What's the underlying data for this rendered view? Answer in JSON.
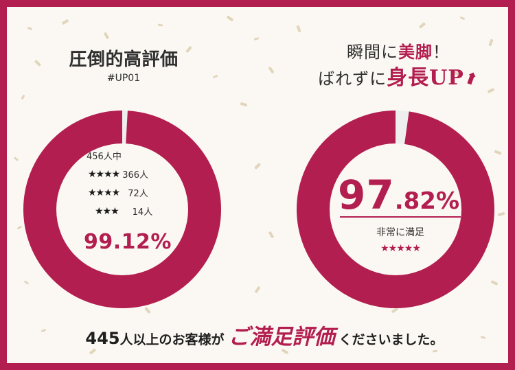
{
  "left": {
    "heading": "圧倒的高評価",
    "subheading": "#UP01",
    "total": "456人中",
    "ratings": [
      {
        "stars": "★★★★",
        "count": "366人"
      },
      {
        "stars": "★★★★",
        "count": "72人"
      },
      {
        "stars": "★★★",
        "count": "14人"
      }
    ],
    "percent_text": "99.12%",
    "percent_value": 99.12
  },
  "right": {
    "heading_part1": "瞬間に",
    "heading_accent1": "美脚",
    "heading_part2": "！",
    "heading_line2_part1": "ばれずに",
    "heading_accent2": "身長UP",
    "arrow": "⬆",
    "percent_int": "97",
    "percent_dec": ".82%",
    "percent_value": 97.82,
    "caption": "非常に満足",
    "stars": "★★★★★"
  },
  "bottom": {
    "number": "445",
    "text": "人以上のお客様が",
    "accent": "ご満足評価",
    "tail": "くださいました。"
  },
  "colors": {
    "accent": "#b31e50",
    "ring_remainder": "#eeeeee",
    "border": "#b31e50",
    "background": "#fbf8f3",
    "confetti": "#d8c9a8"
  }
}
